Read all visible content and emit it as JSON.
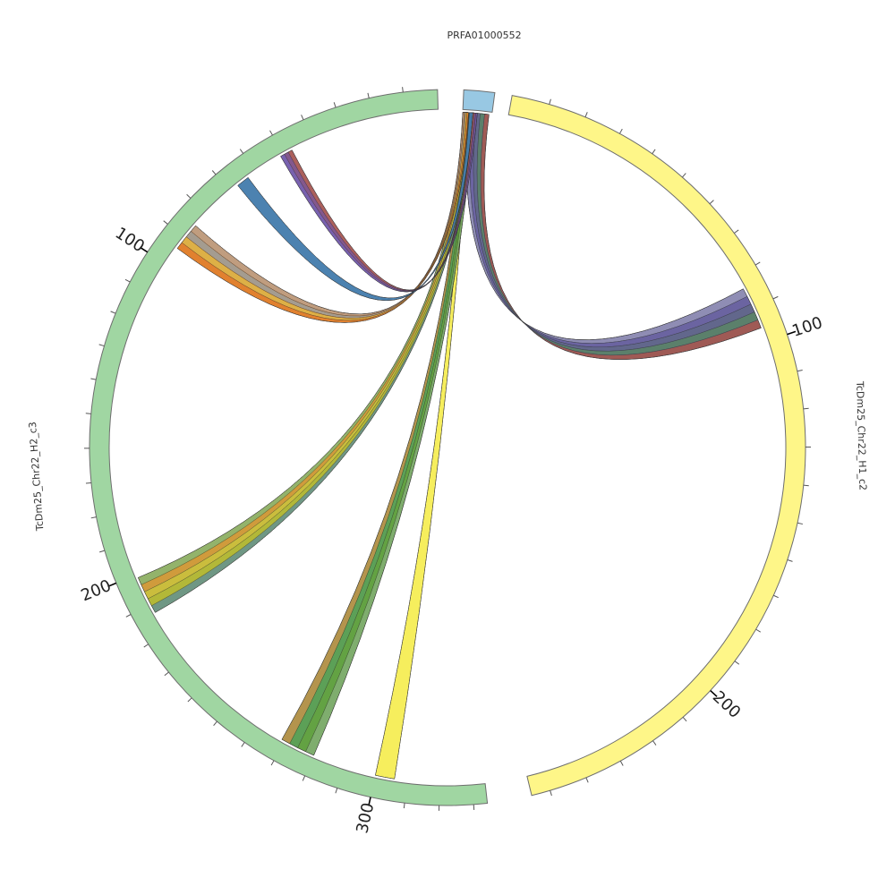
{
  "segments": [
    {
      "label": "PRFA01000552",
      "color": "#98c8e3",
      "length": 4
    },
    {
      "label": "TcDm25_Chr22_H1_c2",
      "color": "#fef688",
      "length": 255
    },
    {
      "label": "TcDm25_Chr22_H2_c3",
      "color": "#a0d6a2",
      "length": 334
    }
  ],
  "ticks": {
    "segment_1": [
      "100",
      "200"
    ],
    "segment_2": [
      "100",
      "200",
      "300"
    ]
  },
  "links": [
    {
      "name": "PRFA01000552-to-H1_c2",
      "source_segment": 0,
      "target_segment": 1,
      "source_range": [
        0.6,
        3.6
      ],
      "target_range": [
        84,
        96
      ],
      "color": "#5a5f87",
      "bands": [
        "#a59fc8",
        "#6a5aa8",
        "#5a5f87",
        "#4f8a4e",
        "#c04a2a"
      ]
    },
    {
      "name": "PRFA01000552-to-H2_c3-block-a",
      "source_segment": 0,
      "target_segment": 2,
      "source_range": [
        0.5,
        1.0
      ],
      "target_range": [
        300,
        306
      ],
      "color": "#f5ee55",
      "bands": [
        "#f5ee55"
      ]
    },
    {
      "name": "PRFA01000552-to-H2_c3-block-b",
      "source_segment": 0,
      "target_segment": 2,
      "source_range": [
        0.2,
        1.6
      ],
      "target_range": [
        269,
        280
      ],
      "color": "#5b9d3a",
      "bands": [
        "#e2874a",
        "#4f9a5a",
        "#5b9d3a",
        "#8ab080"
      ]
    },
    {
      "name": "PRFA01000552-to-H2_c3-block-c",
      "source_segment": 0,
      "target_segment": 2,
      "source_range": [
        0.1,
        1.4
      ],
      "target_range": [
        201,
        213
      ],
      "color": "#b0b52e",
      "bands": [
        "#7aab83",
        "#e08434",
        "#d6bd36",
        "#b0b52e",
        "#3f7dac"
      ]
    },
    {
      "name": "PRFA01000552-to-H2_c3-block-d",
      "source_segment": 0,
      "target_segment": 2,
      "source_range": [
        0.0,
        0.8
      ],
      "target_range": [
        85,
        94
      ],
      "color": "#e07b24",
      "bands": [
        "#a8a8a8",
        "#7ba7c4",
        "#d9c84a",
        "#e07b24"
      ]
    },
    {
      "name": "PRFA01000552-to-H2_c3-block-e",
      "source_segment": 0,
      "target_segment": 2,
      "source_range": [
        0.9,
        1.4
      ],
      "target_range": [
        63,
        67
      ],
      "color": "#437cab",
      "bands": [
        "#437cab"
      ]
    },
    {
      "name": "PRFA01000552-to-H2_c3-block-f",
      "source_segment": 0,
      "target_segment": 2,
      "source_range": [
        1.4,
        2.0
      ],
      "target_range": [
        47,
        51
      ],
      "color": "#7e4f88",
      "bands": [
        "#c05c36",
        "#7e4f88",
        "#6a5ec0"
      ]
    }
  ]
}
